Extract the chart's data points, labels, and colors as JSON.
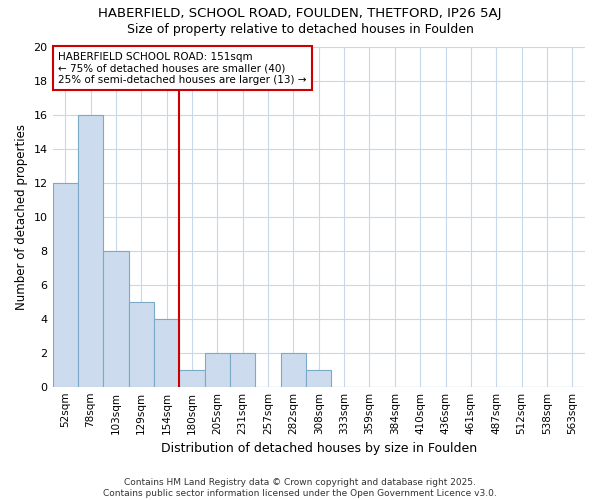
{
  "title1": "HABERFIELD, SCHOOL ROAD, FOULDEN, THETFORD, IP26 5AJ",
  "title2": "Size of property relative to detached houses in Foulden",
  "xlabel": "Distribution of detached houses by size in Foulden",
  "ylabel": "Number of detached properties",
  "bin_labels": [
    "52sqm",
    "78sqm",
    "103sqm",
    "129sqm",
    "154sqm",
    "180sqm",
    "205sqm",
    "231sqm",
    "257sqm",
    "282sqm",
    "308sqm",
    "333sqm",
    "359sqm",
    "384sqm",
    "410sqm",
    "436sqm",
    "461sqm",
    "487sqm",
    "512sqm",
    "538sqm",
    "563sqm"
  ],
  "bar_values": [
    12,
    16,
    8,
    5,
    4,
    1,
    2,
    2,
    0,
    2,
    1,
    0,
    0,
    0,
    0,
    0,
    0,
    0,
    0,
    0,
    0
  ],
  "bar_color": "#ccdcee",
  "bar_edge_color": "#7aaac8",
  "bg_color": "#ffffff",
  "plot_bg_color": "#ffffff",
  "grid_color": "#c8d8ec",
  "red_line_x": 4.5,
  "annotation_text": "HABERFIELD SCHOOL ROAD: 151sqm\n← 75% of detached houses are smaller (40)\n25% of semi-detached houses are larger (13) →",
  "annotation_box_color": "#ffffff",
  "annotation_border_color": "#cc0000",
  "footer": "Contains HM Land Registry data © Crown copyright and database right 2025.\nContains public sector information licensed under the Open Government Licence v3.0.",
  "ylim": [
    0,
    20
  ],
  "yticks": [
    0,
    2,
    4,
    6,
    8,
    10,
    12,
    14,
    16,
    18,
    20
  ]
}
